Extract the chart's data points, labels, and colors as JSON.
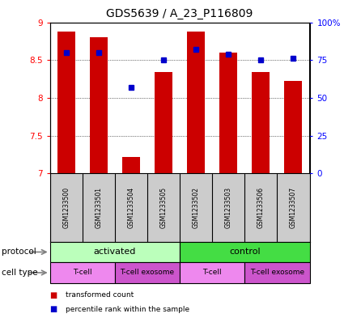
{
  "title": "GDS5639 / A_23_P116809",
  "samples": [
    "GSM1233500",
    "GSM1233501",
    "GSM1233504",
    "GSM1233505",
    "GSM1233502",
    "GSM1233503",
    "GSM1233506",
    "GSM1233507"
  ],
  "transformed_counts": [
    8.88,
    8.8,
    7.22,
    8.34,
    8.88,
    8.6,
    8.34,
    8.22
  ],
  "percentile_ranks": [
    80,
    80,
    57,
    75,
    82,
    79,
    75,
    76
  ],
  "ylim_left": [
    7.0,
    9.0
  ],
  "ylim_right": [
    0,
    100
  ],
  "yticks_left": [
    7.0,
    7.5,
    8.0,
    8.5,
    9.0
  ],
  "ytick_labels_left": [
    "7",
    "7.5",
    "8",
    "8.5",
    "9"
  ],
  "yticks_right": [
    0,
    25,
    50,
    75,
    100
  ],
  "ytick_labels_right": [
    "0",
    "25",
    "50",
    "75",
    "100%"
  ],
  "bar_color": "#cc0000",
  "dot_color": "#0000cc",
  "bar_bottom": 7.0,
  "protocol_groups": [
    {
      "label": "activated",
      "span": [
        0,
        4
      ],
      "color": "#bbffbb"
    },
    {
      "label": "control",
      "span": [
        4,
        8
      ],
      "color": "#44dd44"
    }
  ],
  "celltype_groups": [
    {
      "label": "T-cell",
      "span": [
        0,
        2
      ],
      "color": "#ee88ee"
    },
    {
      "label": "T-cell exosome",
      "span": [
        2,
        4
      ],
      "color": "#cc55cc"
    },
    {
      "label": "T-cell",
      "span": [
        4,
        6
      ],
      "color": "#ee88ee"
    },
    {
      "label": "T-cell exosome",
      "span": [
        6,
        8
      ],
      "color": "#cc55cc"
    }
  ],
  "legend_items": [
    {
      "label": "transformed count",
      "color": "#cc0000"
    },
    {
      "label": "percentile rank within the sample",
      "color": "#0000cc"
    }
  ],
  "sample_bg_color": "#cccccc",
  "title_fontsize": 10,
  "tick_fontsize": 7.5,
  "label_fontsize": 8
}
